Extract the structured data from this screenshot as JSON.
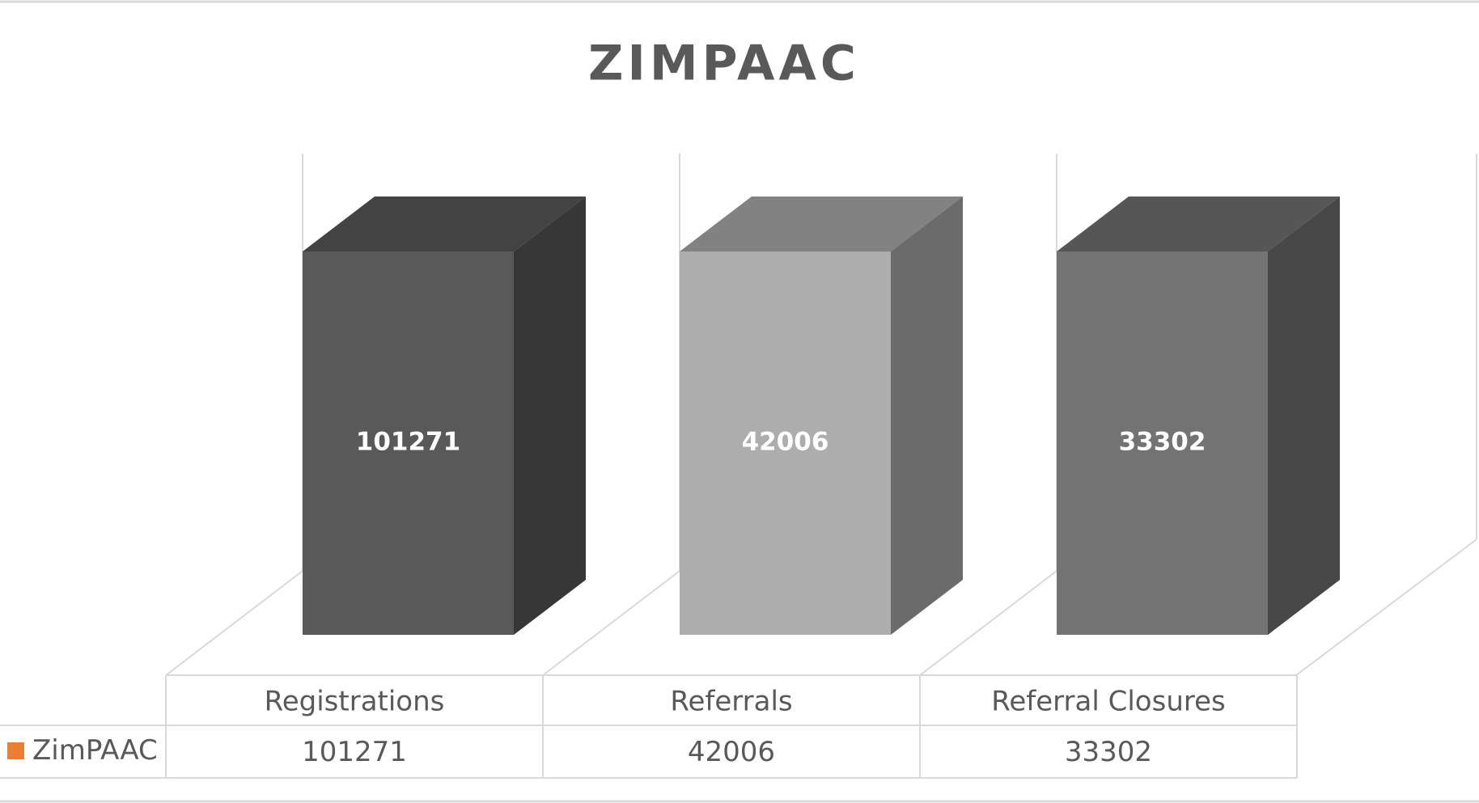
{
  "chart_data": {
    "type": "bar3d",
    "title": "ZIMPAAC",
    "stacking": "percent",
    "categories": [
      "Registrations",
      "Referrals",
      "Referral Closures"
    ],
    "colors": [
      "#595959",
      "#adadad",
      "#737373"
    ],
    "series": [
      {
        "name": "ZimPAAC",
        "color": "#ed7d31",
        "values": [
          101271,
          42006,
          33302
        ]
      }
    ],
    "data_table": true
  }
}
